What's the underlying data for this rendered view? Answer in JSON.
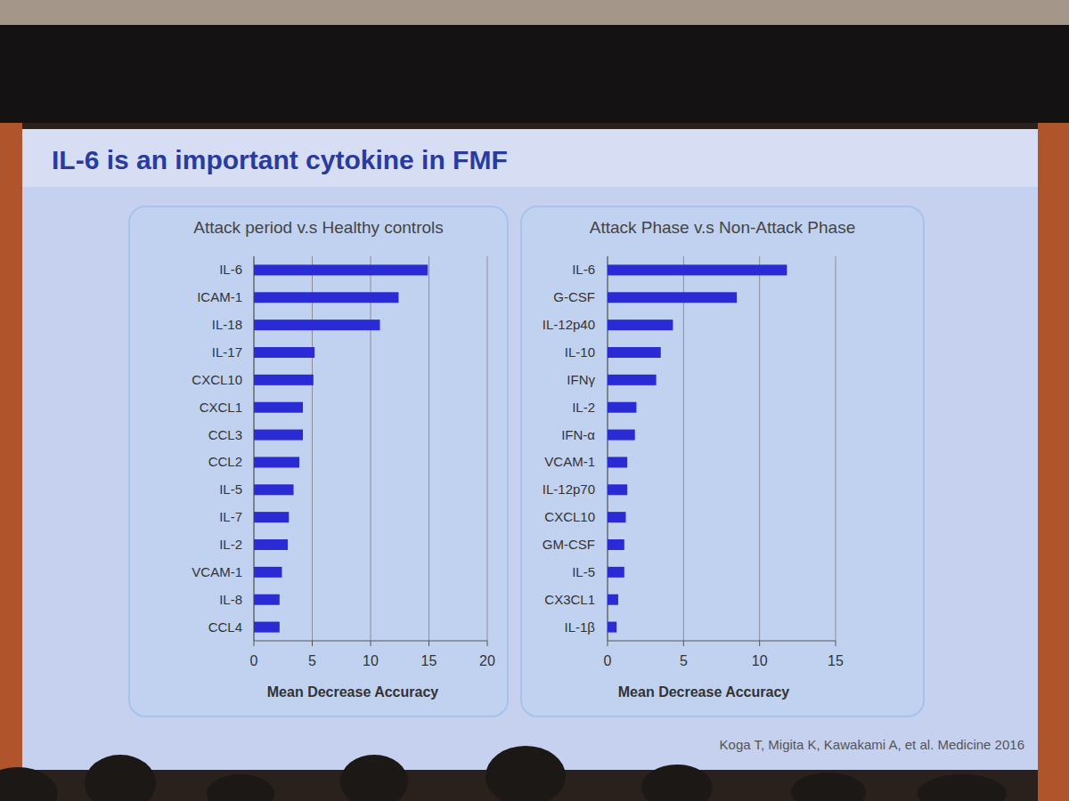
{
  "header": {
    "title": "IL-6 is an important cytokine in FMF"
  },
  "chart_data": [
    {
      "type": "bar",
      "orientation": "horizontal",
      "title": "Attack period v.s Healthy controls",
      "x_label": "Mean Decrease Accuracy",
      "categories": [
        "IL-6",
        "ICAM-1",
        "IL-18",
        "IL-17",
        "CXCL10",
        "CXCL1",
        "CCL3",
        "CCL2",
        "IL-5",
        "IL-7",
        "IL-2",
        "VCAM-1",
        "IL-8",
        "CCL4"
      ],
      "values": [
        14.9,
        12.4,
        10.8,
        5.2,
        5.1,
        4.2,
        4.2,
        3.9,
        3.4,
        3.0,
        2.9,
        2.4,
        2.2,
        2.2
      ],
      "color": "#2b2bd6",
      "xlim": [
        0,
        20
      ],
      "xticks": [
        0,
        5,
        10,
        15,
        20
      ],
      "grid": true
    },
    {
      "type": "bar",
      "orientation": "horizontal",
      "title": "Attack Phase v.s Non-Attack Phase",
      "x_label": "Mean Decrease Accuracy",
      "categories": [
        "IL-6",
        "G-CSF",
        "IL-12p40",
        "IL-10",
        "IFNγ",
        "IL-2",
        "IFN-α",
        "VCAM-1",
        "IL-12p70",
        "CXCL10",
        "GM-CSF",
        "IL-5",
        "CX3CL1",
        "IL-1β"
      ],
      "values": [
        11.8,
        8.5,
        4.3,
        3.5,
        3.2,
        1.9,
        1.8,
        1.3,
        1.3,
        1.2,
        1.1,
        1.1,
        0.7,
        0.6
      ],
      "color": "#2b2bd6",
      "xlim": [
        0,
        15
      ],
      "xticks": [
        0,
        5,
        10,
        15
      ],
      "grid": true
    }
  ],
  "footer": {
    "citation": "Koga T, Migita K, Kawakami A, et al. Medicine 2016"
  }
}
